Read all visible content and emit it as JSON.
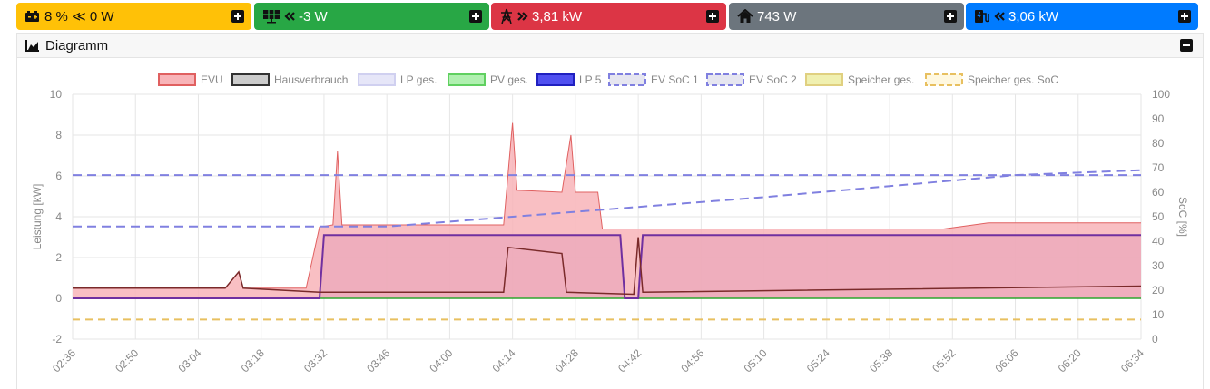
{
  "tiles": {
    "battery": {
      "value": "8 % ≪ 0 W",
      "percent": "8 %",
      "power": "0 W",
      "icon": "battery-icon"
    },
    "pv": {
      "power": "-3 W",
      "icon": "solar-panel-icon"
    },
    "grid": {
      "power": "3,81 kW",
      "icon": "power-pylon-icon"
    },
    "house": {
      "power": "743 W",
      "icon": "house-icon"
    },
    "charge": {
      "power": "3,06 kW",
      "icon": "ev-charger-icon"
    }
  },
  "panel": {
    "title": "Diagramm"
  },
  "colors": {
    "evu": "#f8b4b8",
    "evu_line": "#e06060",
    "house": "#7a2a2a",
    "lp5": "#7030a0",
    "soc": "#8080e0",
    "speicher_soc": "#e8c060",
    "pv": "#2ea52e"
  },
  "chart_data": {
    "type": "line",
    "ylabel": "Leistung [kW]",
    "y2label": "SoC [%]",
    "ylim": [
      -2,
      10
    ],
    "y2lim": [
      0,
      100
    ],
    "yticks": [
      "10",
      "8",
      "6",
      "4",
      "2",
      "0",
      "-2"
    ],
    "y2ticks": [
      "100",
      "90",
      "80",
      "70",
      "60",
      "50",
      "40",
      "30",
      "20",
      "10",
      "0"
    ],
    "xticks": [
      "02:36",
      "02:50",
      "03:04",
      "03:18",
      "03:32",
      "03:46",
      "04:00",
      "04:14",
      "04:28",
      "04:42",
      "04:56",
      "05:10",
      "05:24",
      "05:38",
      "05:52",
      "06:06",
      "06:20",
      "06:34"
    ],
    "legend": [
      "EVU",
      "Hausverbrauch",
      "LP ges.",
      "PV ges.",
      "LP 5",
      "EV SoC 1",
      "EV SoC 2",
      "Speicher ges.",
      "Speicher ges. SoC"
    ],
    "series": [
      {
        "name": "EVU",
        "points": [
          [
            "02:36",
            0.5
          ],
          [
            "03:10",
            0.5
          ],
          [
            "03:13",
            1.3
          ],
          [
            "03:14",
            0.5
          ],
          [
            "03:28",
            0.5
          ],
          [
            "03:31",
            3.5
          ],
          [
            "03:34",
            3.6
          ],
          [
            "03:35",
            7.2
          ],
          [
            "03:36",
            3.6
          ],
          [
            "04:12",
            3.6
          ],
          [
            "04:14",
            8.6
          ],
          [
            "04:15",
            5.3
          ],
          [
            "04:25",
            5.2
          ],
          [
            "04:27",
            8.0
          ],
          [
            "04:28",
            5.2
          ],
          [
            "04:33",
            5.2
          ],
          [
            "04:34",
            3.4
          ],
          [
            "04:42",
            3.4
          ],
          [
            "04:43",
            3.4
          ],
          [
            "05:50",
            3.4
          ],
          [
            "06:00",
            3.7
          ],
          [
            "06:34",
            3.7
          ]
        ]
      },
      {
        "name": "Hausverbrauch",
        "points": [
          [
            "02:36",
            0.5
          ],
          [
            "03:10",
            0.5
          ],
          [
            "03:13",
            1.3
          ],
          [
            "03:14",
            0.5
          ],
          [
            "03:31",
            0.3
          ],
          [
            "04:12",
            0.3
          ],
          [
            "04:13",
            2.5
          ],
          [
            "04:25",
            2.2
          ],
          [
            "04:26",
            0.3
          ],
          [
            "04:41",
            0.2
          ],
          [
            "04:42",
            3.0
          ],
          [
            "04:43",
            0.3
          ],
          [
            "06:34",
            0.6
          ]
        ]
      },
      {
        "name": "LP 5",
        "points": [
          [
            "02:36",
            0
          ],
          [
            "03:31",
            0
          ],
          [
            "03:32",
            3.1
          ],
          [
            "04:38",
            3.1
          ],
          [
            "04:39",
            0
          ],
          [
            "04:42",
            0
          ],
          [
            "04:43",
            3.1
          ],
          [
            "06:34",
            3.1
          ]
        ]
      },
      {
        "name": "EV SoC 1",
        "points": [
          [
            "02:36",
            67
          ],
          [
            "06:34",
            67
          ]
        ]
      },
      {
        "name": "EV SoC 2",
        "points": [
          [
            "02:36",
            46
          ],
          [
            "03:46",
            46
          ],
          [
            "05:10",
            58
          ],
          [
            "06:06",
            67
          ],
          [
            "06:34",
            69
          ]
        ]
      },
      {
        "name": "Speicher ges. SoC",
        "points": [
          [
            "02:36",
            8
          ],
          [
            "06:34",
            8
          ]
        ]
      },
      {
        "name": "PV ges.",
        "points": [
          [
            "02:36",
            0
          ],
          [
            "06:34",
            0
          ]
        ]
      }
    ]
  }
}
